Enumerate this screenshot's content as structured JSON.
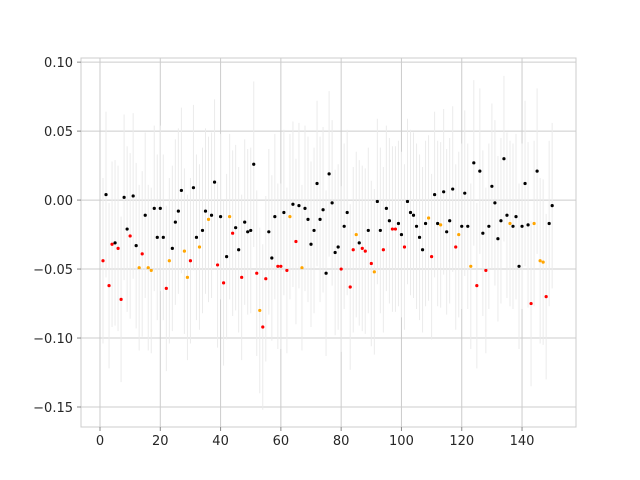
{
  "chart_data": {
    "type": "scatter",
    "title": "",
    "xlabel": "",
    "ylabel": "",
    "xlim": [
      -6.3,
      157.9
    ],
    "ylim": [
      -0.1645,
      0.103
    ],
    "grid": true,
    "xticks": [
      0,
      20,
      40,
      60,
      80,
      100,
      120,
      140
    ],
    "xtick_labels": [
      "0",
      "20",
      "40",
      "60",
      "80",
      "100",
      "120",
      "140"
    ],
    "yticks": [
      0.1,
      0.05,
      0.0,
      -0.05,
      -0.1,
      -0.15
    ],
    "ytick_labels": [
      "0.10",
      "0.05",
      "0.00",
      "−0.05",
      "−0.10",
      "−0.15"
    ],
    "error_bars": "vertical, light gray, approx ±0.06",
    "yerr": 0.06,
    "colors": {
      "k": "#000000",
      "r": "#ff0000",
      "o": "#ffa500",
      "grid": "#cccccc",
      "errorbar": "#ebebeb"
    },
    "x": [
      1,
      2,
      3,
      4,
      5,
      6,
      7,
      8,
      9,
      10,
      11,
      12,
      13,
      14,
      15,
      16,
      17,
      18,
      19,
      20,
      21,
      22,
      23,
      24,
      25,
      26,
      27,
      28,
      29,
      30,
      31,
      32,
      33,
      34,
      35,
      36,
      37,
      38,
      39,
      40,
      41,
      42,
      43,
      44,
      45,
      46,
      47,
      48,
      49,
      50,
      51,
      52,
      53,
      54,
      55,
      56,
      57,
      58,
      59,
      60,
      61,
      62,
      63,
      64,
      65,
      66,
      67,
      68,
      69,
      70,
      71,
      72,
      73,
      74,
      75,
      76,
      77,
      78,
      79,
      80,
      81,
      82,
      83,
      84,
      85,
      86,
      87,
      88,
      89,
      90,
      91,
      92,
      93,
      94,
      95,
      96,
      97,
      98,
      99,
      100,
      101,
      102,
      103,
      104,
      105,
      106,
      107,
      108,
      109,
      110,
      111,
      112,
      113,
      114,
      115,
      116,
      117,
      118,
      119,
      120,
      121,
      122,
      123,
      124,
      125,
      126,
      127,
      128,
      129,
      130,
      131,
      132,
      133,
      134,
      135,
      136,
      137,
      138,
      139,
      140,
      141,
      142,
      143,
      144,
      145,
      146,
      147,
      148,
      149,
      150
    ],
    "y": [
      -0.044,
      0.004,
      -0.062,
      -0.032,
      -0.031,
      -0.035,
      -0.072,
      0.002,
      -0.021,
      -0.026,
      0.003,
      -0.033,
      -0.049,
      -0.039,
      -0.011,
      -0.049,
      -0.051,
      -0.006,
      -0.027,
      -0.006,
      -0.027,
      -0.064,
      -0.044,
      -0.035,
      -0.016,
      -0.008,
      0.007,
      -0.037,
      -0.056,
      -0.044,
      0.009,
      -0.027,
      -0.034,
      -0.022,
      -0.008,
      -0.014,
      -0.011,
      0.013,
      -0.047,
      -0.012,
      -0.06,
      -0.041,
      -0.012,
      -0.024,
      -0.02,
      -0.036,
      -0.056,
      -0.016,
      -0.023,
      -0.022,
      0.026,
      -0.053,
      -0.08,
      -0.092,
      -0.057,
      -0.023,
      -0.042,
      -0.012,
      -0.048,
      -0.048,
      -0.009,
      -0.051,
      -0.012,
      -0.003,
      -0.03,
      -0.004,
      -0.049,
      -0.006,
      -0.014,
      -0.032,
      -0.022,
      0.012,
      -0.014,
      -0.007,
      -0.053,
      0.019,
      -0.002,
      -0.038,
      -0.034,
      -0.05,
      -0.019,
      -0.009,
      -0.063,
      -0.036,
      -0.025,
      -0.031,
      -0.035,
      -0.037,
      -0.022,
      -0.046,
      -0.052,
      -0.001,
      -0.022,
      -0.036,
      -0.006,
      -0.015,
      -0.021,
      -0.021,
      -0.017,
      -0.025,
      -0.034,
      -0.001,
      -0.009,
      -0.011,
      -0.019,
      -0.027,
      -0.036,
      -0.017,
      -0.013,
      -0.041,
      0.004,
      -0.017,
      -0.018,
      0.006,
      -0.023,
      -0.015,
      0.008,
      -0.034,
      -0.025,
      -0.019,
      0.005,
      -0.019,
      -0.048,
      0.027,
      -0.062,
      0.021,
      -0.024,
      -0.051,
      -0.019,
      0.01,
      -0.002,
      -0.028,
      -0.015,
      0.03,
      -0.011,
      -0.017,
      -0.019,
      -0.012,
      -0.048,
      -0.019,
      0.012,
      -0.018,
      -0.075,
      -0.017,
      0.021,
      -0.044,
      -0.045,
      -0.07,
      -0.017,
      -0.004
    ],
    "point_colors": [
      "r",
      "k",
      "r",
      "r",
      "k",
      "r",
      "r",
      "k",
      "k",
      "r",
      "k",
      "k",
      "o",
      "r",
      "k",
      "o",
      "o",
      "k",
      "k",
      "k",
      "k",
      "r",
      "o",
      "k",
      "k",
      "k",
      "k",
      "o",
      "o",
      "r",
      "k",
      "k",
      "o",
      "k",
      "k",
      "o",
      "k",
      "k",
      "r",
      "k",
      "r",
      "k",
      "o",
      "r",
      "k",
      "k",
      "r",
      "k",
      "k",
      "k",
      "k",
      "r",
      "o",
      "r",
      "r",
      "k",
      "k",
      "k",
      "r",
      "r",
      "k",
      "r",
      "o",
      "k",
      "r",
      "k",
      "o",
      "k",
      "k",
      "k",
      "k",
      "k",
      "k",
      "k",
      "k",
      "k",
      "k",
      "k",
      "k",
      "r",
      "k",
      "k",
      "r",
      "r",
      "o",
      "k",
      "r",
      "r",
      "k",
      "r",
      "o",
      "k",
      "k",
      "r",
      "k",
      "k",
      "r",
      "r",
      "k",
      "k",
      "r",
      "k",
      "k",
      "k",
      "k",
      "k",
      "k",
      "k",
      "o",
      "r",
      "k",
      "k",
      "o",
      "k",
      "k",
      "k",
      "k",
      "r",
      "o",
      "k",
      "k",
      "k",
      "o",
      "k",
      "r",
      "k",
      "k",
      "r",
      "k",
      "k",
      "k",
      "k",
      "k",
      "k",
      "k",
      "o",
      "k",
      "k",
      "k",
      "k",
      "k",
      "k",
      "r",
      "o",
      "k",
      "o",
      "o",
      "r",
      "k",
      "k"
    ]
  }
}
